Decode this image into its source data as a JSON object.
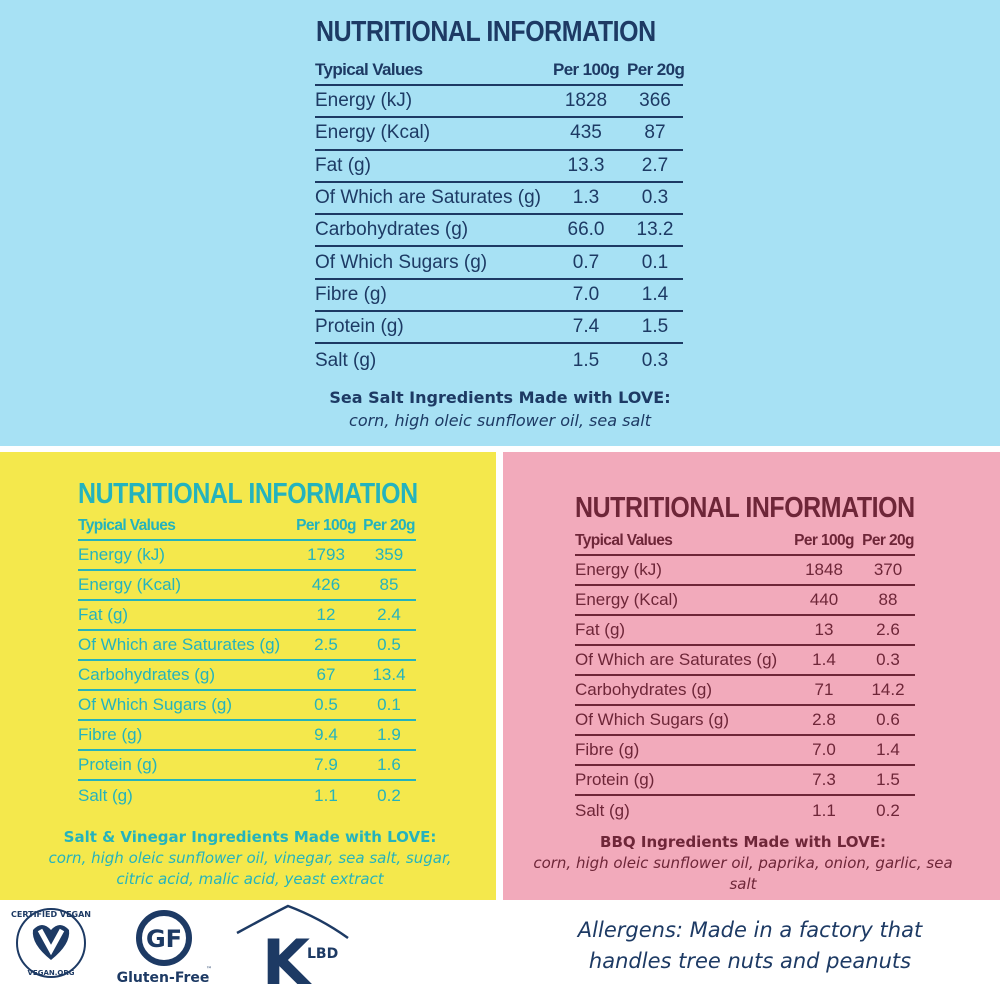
{
  "panels": [
    {
      "id": "top",
      "title": "NUTRITIONAL INFORMATION",
      "headers": [
        "Typical Values",
        "Per 100g",
        "Per 20g"
      ],
      "rows": [
        [
          "Energy (kJ)",
          "1828",
          "366"
        ],
        [
          "Energy (Kcal)",
          "435",
          "87"
        ],
        [
          "Fat (g)",
          "13.3",
          "2.7"
        ],
        [
          "Of Which are Saturates (g)",
          "1.3",
          "0.3"
        ],
        [
          "Carbohydrates (g)",
          "66.0",
          "13.2"
        ],
        [
          "Of Which Sugars (g)",
          "0.7",
          "0.1"
        ],
        [
          "Fibre (g)",
          "7.0",
          "1.4"
        ],
        [
          "Protein (g)",
          "7.4",
          "1.5"
        ],
        [
          "Salt (g)",
          "1.5",
          "0.3"
        ]
      ],
      "ingredients_heading": "Sea Salt Ingredients Made with LOVE:",
      "ingredients": "corn, high oleic sunflower oil, sea salt"
    },
    {
      "id": "yellow",
      "title": "NUTRITIONAL INFORMATION",
      "headers": [
        "Typical Values",
        "Per 100g",
        "Per 20g"
      ],
      "rows": [
        [
          "Energy (kJ)",
          "1793",
          "359"
        ],
        [
          "Energy (Kcal)",
          "426",
          "85"
        ],
        [
          "Fat (g)",
          "12",
          "2.4"
        ],
        [
          "Of Which are Saturates (g)",
          "2.5",
          "0.5"
        ],
        [
          "Carbohydrates (g)",
          "67",
          "13.4"
        ],
        [
          "Of Which Sugars (g)",
          "0.5",
          "0.1"
        ],
        [
          "Fibre (g)",
          "9.4",
          "1.9"
        ],
        [
          "Protein (g)",
          "7.9",
          "1.6"
        ],
        [
          "Salt (g)",
          "1.1",
          "0.2"
        ]
      ],
      "ingredients_heading": "Salt & Vinegar Ingredients Made with LOVE:",
      "ingredients": "corn, high oleic sunflower oil, vinegar, sea salt, sugar, citric acid, malic acid, yeast extract"
    },
    {
      "id": "pink",
      "title": "NUTRITIONAL INFORMATION",
      "headers": [
        "Typical Values",
        "Per 100g",
        "Per 20g"
      ],
      "rows": [
        [
          "Energy (kJ)",
          "1848",
          "370"
        ],
        [
          "Energy (Kcal)",
          "440",
          "88"
        ],
        [
          "Fat (g)",
          "13",
          "2.6"
        ],
        [
          "Of Which are Saturates (g)",
          "1.4",
          "0.3"
        ],
        [
          "Carbohydrates (g)",
          "71",
          "14.2"
        ],
        [
          "Of Which Sugars (g)",
          "2.8",
          "0.6"
        ],
        [
          "Fibre (g)",
          "7.0",
          "1.4"
        ],
        [
          "Protein (g)",
          "7.3",
          "1.5"
        ],
        [
          "Salt (g)",
          "1.1",
          "0.2"
        ]
      ],
      "ingredients_heading": "BBQ Ingredients Made with LOVE:",
      "ingredients": "corn, high oleic sunflower oil, paprika, onion, garlic, sea salt"
    }
  ],
  "logos": {
    "vegan_top": "CERTIFIED VEGAN",
    "vegan_bottom": "VEGAN.ORG",
    "gf_mark": "GF",
    "gf_label": "Gluten-Free",
    "gf_tm": "™",
    "kosher_k": "K",
    "kosher_lbd": "LBD"
  },
  "allergens": "Allergens: Made in a factory that handles tree nuts and peanuts",
  "colors": {
    "navy": "#1d3a64",
    "teal": "#24b3bd",
    "maroon": "#6e2638",
    "blue_bg": "#a7e1f4",
    "yellow_bg": "#f4e84c",
    "pink_bg": "#f2aabb"
  }
}
